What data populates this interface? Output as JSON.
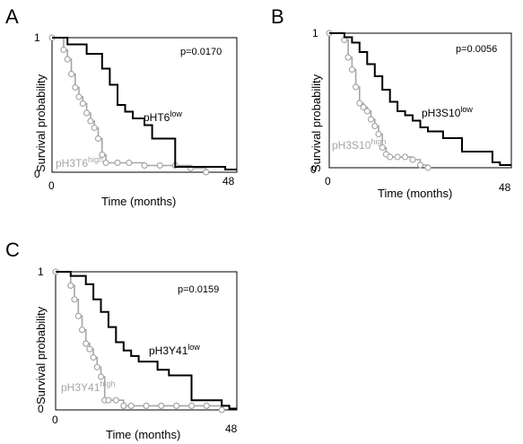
{
  "chart_data": [
    {
      "type": "line",
      "panel": "A",
      "xlabel": "Time (months)",
      "ylabel": "Survival probability",
      "xlim": [
        0,
        48
      ],
      "ylim": [
        0,
        1
      ],
      "x_ticks": [
        "0",
        "48"
      ],
      "y_ticks": [
        "0",
        "1"
      ],
      "pvalue": "p=0.0170",
      "colors": {
        "low": "#000000",
        "high": "#a6a6a6"
      },
      "series": [
        {
          "label_base": "pHT6",
          "label_sup": "low",
          "role": "low",
          "x": [
            0,
            4,
            9,
            13,
            15,
            17,
            19,
            21,
            24,
            26,
            32,
            40,
            45,
            48
          ],
          "y": [
            1,
            0.95,
            0.88,
            0.77,
            0.65,
            0.5,
            0.45,
            0.4,
            0.35,
            0.25,
            0.04,
            0.04,
            0.02,
            0.02
          ]
        },
        {
          "label_base": "pH3T6",
          "label_sup": "high",
          "role": "high",
          "x": [
            0,
            3,
            4,
            5,
            6,
            7,
            8,
            9,
            10,
            11,
            12,
            13,
            14,
            17,
            20,
            24,
            28,
            32,
            36,
            40
          ],
          "y": [
            1,
            0.91,
            0.84,
            0.73,
            0.63,
            0.56,
            0.51,
            0.44,
            0.38,
            0.33,
            0.25,
            0.13,
            0.07,
            0.07,
            0.07,
            0.05,
            0.05,
            0.05,
            0.03,
            0.0
          ]
        }
      ]
    },
    {
      "type": "line",
      "panel": "B",
      "xlabel": "Time (months)",
      "ylabel": "Survival probability",
      "xlim": [
        0,
        48
      ],
      "ylim": [
        0,
        1
      ],
      "x_ticks": [
        "0",
        "48"
      ],
      "y_ticks": [
        "0",
        "1"
      ],
      "pvalue": "p=0.0056",
      "colors": {
        "low": "#000000",
        "high": "#a6a6a6"
      },
      "series": [
        {
          "label_base": "pH3S10",
          "label_sup": "low",
          "role": "low",
          "x": [
            0,
            4,
            6,
            8,
            10,
            12,
            14,
            16,
            18,
            20,
            22,
            24,
            26,
            28,
            30,
            35,
            43,
            45,
            48
          ],
          "y": [
            1,
            0.97,
            0.93,
            0.86,
            0.77,
            0.68,
            0.58,
            0.49,
            0.42,
            0.39,
            0.35,
            0.3,
            0.27,
            0.27,
            0.22,
            0.12,
            0.04,
            0.02,
            0.02
          ]
        },
        {
          "label_base": "pH3S10",
          "label_sup": "high",
          "role": "high",
          "x": [
            0,
            4,
            5,
            6,
            7,
            8,
            9,
            10,
            11,
            12,
            13,
            14,
            15,
            16,
            18,
            20,
            22,
            24,
            26
          ],
          "y": [
            1,
            0.95,
            0.82,
            0.73,
            0.6,
            0.48,
            0.45,
            0.42,
            0.36,
            0.31,
            0.25,
            0.15,
            0.1,
            0.08,
            0.08,
            0.08,
            0.06,
            0.02,
            0.0
          ]
        }
      ]
    },
    {
      "type": "line",
      "panel": "C",
      "xlabel": "Time (months)",
      "ylabel": "Survival probability",
      "xlim": [
        0,
        48
      ],
      "ylim": [
        0,
        1
      ],
      "x_ticks": [
        "0",
        "48"
      ],
      "y_ticks": [
        "0",
        "1"
      ],
      "pvalue": "p=0.0159",
      "colors": {
        "low": "#000000",
        "high": "#a6a6a6"
      },
      "series": [
        {
          "label_base": "pH3Y41",
          "label_sup": "low",
          "role": "low",
          "x": [
            0,
            4,
            8,
            10,
            12,
            14,
            16,
            18,
            20,
            22,
            24,
            27,
            30,
            36,
            44,
            46,
            48
          ],
          "y": [
            1,
            0.97,
            0.91,
            0.8,
            0.71,
            0.6,
            0.49,
            0.43,
            0.39,
            0.35,
            0.35,
            0.29,
            0.25,
            0.07,
            0.03,
            0.01,
            0.01
          ]
        },
        {
          "label_base": "pH3Y41",
          "label_sup": "high",
          "role": "high",
          "x": [
            0,
            4,
            5,
            6,
            7,
            8,
            9,
            10,
            11,
            12,
            13,
            14,
            16,
            18,
            20,
            24,
            28,
            32,
            36,
            40,
            44
          ],
          "y": [
            1,
            0.9,
            0.8,
            0.68,
            0.58,
            0.48,
            0.44,
            0.38,
            0.31,
            0.24,
            0.07,
            0.07,
            0.07,
            0.03,
            0.03,
            0.03,
            0.03,
            0.03,
            0.03,
            0.03,
            0.0
          ]
        }
      ]
    }
  ]
}
